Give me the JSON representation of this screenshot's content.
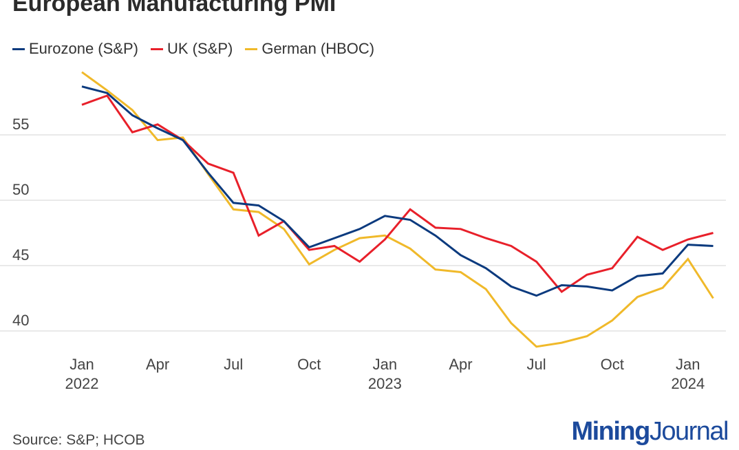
{
  "chart_data": {
    "type": "line",
    "title": "European Manufacturing PMI",
    "x": [
      "2022-01",
      "2022-02",
      "2022-03",
      "2022-04",
      "2022-05",
      "2022-06",
      "2022-07",
      "2022-08",
      "2022-09",
      "2022-10",
      "2022-11",
      "2022-12",
      "2023-01",
      "2023-02",
      "2023-03",
      "2023-04",
      "2023-05",
      "2023-06",
      "2023-07",
      "2023-08",
      "2023-09",
      "2023-10",
      "2023-11",
      "2023-12",
      "2024-01",
      "2024-02"
    ],
    "x_tick_labels": [
      {
        "month": "Jan",
        "year": "2022",
        "index": 0
      },
      {
        "month": "Apr",
        "year": "",
        "index": 3
      },
      {
        "month": "Jul",
        "year": "",
        "index": 6
      },
      {
        "month": "Oct",
        "year": "",
        "index": 9
      },
      {
        "month": "Jan",
        "year": "2023",
        "index": 12
      },
      {
        "month": "Apr",
        "year": "",
        "index": 15
      },
      {
        "month": "Jul",
        "year": "",
        "index": 18
      },
      {
        "month": "Oct",
        "year": "",
        "index": 21
      },
      {
        "month": "Jan",
        "year": "2024",
        "index": 24
      }
    ],
    "y_ticks": [
      40,
      45,
      50,
      55
    ],
    "ylim": [
      38.2,
      60.5
    ],
    "grid": true,
    "legend_position": "top-left",
    "series": [
      {
        "name": "Eurozone (S&P)",
        "color": "#0b3a7e",
        "values": [
          58.7,
          58.2,
          56.5,
          55.5,
          54.6,
          52.1,
          49.8,
          49.6,
          48.4,
          46.4,
          47.1,
          47.8,
          48.8,
          48.5,
          47.3,
          45.8,
          44.8,
          43.4,
          42.7,
          43.5,
          43.4,
          43.1,
          44.2,
          44.4,
          46.6,
          46.5
        ]
      },
      {
        "name": "UK (S&P)",
        "color": "#e8202a",
        "values": [
          57.3,
          58.0,
          55.2,
          55.8,
          54.6,
          52.8,
          52.1,
          47.3,
          48.4,
          46.2,
          46.5,
          45.3,
          47.0,
          49.3,
          47.9,
          47.8,
          47.1,
          46.5,
          45.3,
          43.0,
          44.3,
          44.8,
          47.2,
          46.2,
          47.0,
          47.5
        ]
      },
      {
        "name": "German (HBOC)",
        "color": "#f0b92a",
        "values": [
          59.8,
          58.4,
          56.9,
          54.6,
          54.8,
          52.0,
          49.3,
          49.1,
          47.8,
          45.1,
          46.2,
          47.1,
          47.3,
          46.3,
          44.7,
          44.5,
          43.2,
          40.6,
          38.8,
          39.1,
          39.6,
          40.8,
          42.6,
          43.3,
          45.5,
          42.5
        ]
      }
    ]
  },
  "source": "Source: S&P; HCOB",
  "logo": {
    "part1": "Mining",
    "part2": "Journal"
  }
}
